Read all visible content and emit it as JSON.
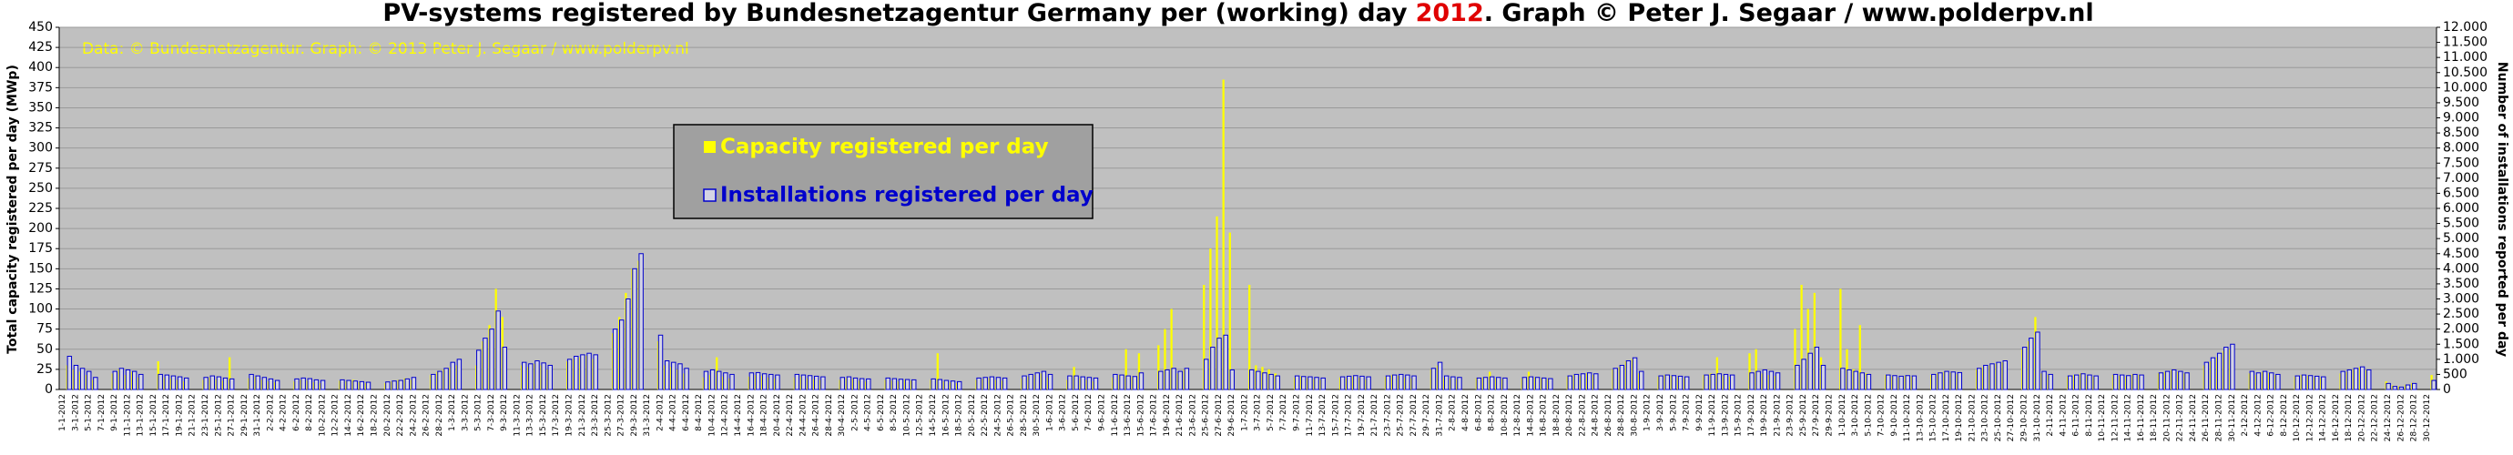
{
  "chart_data": {
    "type": "bar",
    "title": [
      "PV-systems registered by Bundesnetzagentur Germany per (working) day",
      "2012",
      ". Graph © Peter J. Segaar / www.polderpv.nl"
    ],
    "title_colors": [
      "#000000",
      "#e00000",
      "#000000"
    ],
    "annotation": "Data: © Bundesnetzagentur. Graph: © 2013 Peter J. Segaar / www.polderpv.nl",
    "ylabel": "Total capacity registered per day (MWp)",
    "y2label": "Number of installations reported per day",
    "categories": [
      "1-1-2012",
      null,
      "3-1-2012",
      null,
      "5-1-2012",
      null,
      "7-1-2012",
      null,
      "9-1-2012",
      null,
      "11-1-2012",
      null,
      "13-1-2012",
      null,
      "15-1-2012",
      null,
      "17-1-2012",
      null,
      "19-1-2012",
      null,
      "21-1-2012",
      null,
      "23-1-2012",
      null,
      "25-1-2012",
      null,
      "27-1-2012",
      null,
      "29-1-2012",
      null,
      "31-1-2012",
      null,
      "2-2-2012",
      null,
      "4-2-2012",
      null,
      "6-2-2012",
      null,
      "8-2-2012",
      null,
      "10-2-2012",
      null,
      "12-2-2012",
      null,
      "14-2-2012",
      null,
      "16-2-2012",
      null,
      "18-2-2012",
      null,
      "20-2-2012",
      null,
      "22-2-2012",
      null,
      "24-2-2012",
      null,
      "26-2-2012",
      null,
      "28-2-2012",
      null,
      "1-3-2012",
      null,
      "3-3-2012",
      null,
      "5-3-2012",
      null,
      "7-3-2012",
      null,
      "9-3-2012",
      null,
      "11-3-2012",
      null,
      "13-3-2012",
      null,
      "15-3-2012",
      null,
      "17-3-2012",
      null,
      "19-3-2012",
      null,
      "21-3-2012",
      null,
      "23-3-2012",
      null,
      "25-3-2012",
      null,
      "27-3-2012",
      null,
      "29-3-2012",
      null,
      "31-3-2012",
      null,
      "2-4-2012",
      null,
      "4-4-2012",
      null,
      "6-4-2012",
      null,
      "8-4-2012",
      null,
      "10-4-2012",
      null,
      "12-4-2012",
      null,
      "14-4-2012",
      null,
      "16-4-2012",
      null,
      "18-4-2012",
      null,
      "20-4-2012",
      null,
      "22-4-2012",
      null,
      "24-4-2012",
      null,
      "26-4-2012",
      null,
      "28-4-2012",
      null,
      "30-4-2012",
      null,
      "2-5-2012",
      null,
      "4-5-2012",
      null,
      "6-5-2012",
      null,
      "8-5-2012",
      null,
      "10-5-2012",
      null,
      "12-5-2012",
      null,
      "14-5-2012",
      null,
      "16-5-2012",
      null,
      "18-5-2012",
      null,
      "20-5-2012",
      null,
      "22-5-2012",
      null,
      "24-5-2012",
      null,
      "26-5-2012",
      null,
      "28-5-2012",
      null,
      "30-5-2012",
      null,
      "1-6-2012",
      null,
      "3-6-2012",
      null,
      "5-6-2012",
      null,
      "7-6-2012",
      null,
      "9-6-2012",
      null,
      "11-6-2012",
      null,
      "13-6-2012",
      null,
      "15-6-2012",
      null,
      "17-6-2012",
      null,
      "19-6-2012",
      null,
      "21-6-2012",
      null,
      "23-6-2012",
      null,
      "25-6-2012",
      null,
      "27-6-2012",
      null,
      "29-6-2012",
      null,
      "1-7-2012",
      null,
      "3-7-2012",
      null,
      "5-7-2012",
      null,
      "7-7-2012",
      null,
      "9-7-2012",
      null,
      "11-7-2012",
      null,
      "13-7-2012",
      null,
      "15-7-2012",
      null,
      "17-7-2012",
      null,
      "19-7-2012",
      null,
      "21-7-2012",
      null,
      "23-7-2012",
      null,
      "25-7-2012",
      null,
      "27-7-2012",
      null,
      "29-7-2012",
      null,
      "31-7-2012",
      null,
      "2-8-2012",
      null,
      "4-8-2012",
      null,
      "6-8-2012",
      null,
      "8-8-2012",
      null,
      "10-8-2012",
      null,
      "12-8-2012",
      null,
      "14-8-2012",
      null,
      "16-8-2012",
      null,
      "18-8-2012",
      null,
      "20-8-2012",
      null,
      "22-8-2012",
      null,
      "24-8-2012",
      null,
      "26-8-2012",
      null,
      "28-8-2012",
      null,
      "30-8-2012",
      null,
      "1-9-2012",
      null,
      "3-9-2012",
      null,
      "5-9-2012",
      null,
      "7-9-2012",
      null,
      "9-9-2012",
      null,
      "11-9-2012",
      null,
      "13-9-2012",
      null,
      "15-9-2012",
      null,
      "17-9-2012",
      null,
      "19-9-2012",
      null,
      "21-9-2012",
      null,
      "23-9-2012",
      null,
      "25-9-2012",
      null,
      "27-9-2012",
      null,
      "29-9-2012",
      null,
      "1-10-2012",
      null,
      "3-10-2012",
      null,
      "5-10-2012",
      null,
      "7-10-2012",
      null,
      "9-10-2012",
      null,
      "11-10-2012",
      null,
      "13-10-2012",
      null,
      "15-10-2012",
      null,
      "17-10-2012",
      null,
      "19-10-2012",
      null,
      "21-10-2012",
      null,
      "23-10-2012",
      null,
      "25-10-2012",
      null,
      "27-10-2012",
      null,
      "29-10-2012",
      null,
      "31-10-2012",
      null,
      "2-11-2012",
      null,
      "4-11-2012",
      null,
      "6-11-2012",
      null,
      "8-11-2012",
      null,
      "10-11-2012",
      null,
      "12-11-2012",
      null,
      "14-11-2012",
      null,
      "16-11-2012",
      null,
      "18-11-2012",
      null,
      "20-11-2012",
      null,
      "22-11-2012",
      null,
      "24-11-2012",
      null,
      "26-11-2012",
      null,
      "28-11-2012",
      null,
      "30-11-2012",
      null,
      "2-12-2012",
      null,
      "4-12-2012",
      null,
      "6-12-2012",
      null,
      "8-12-2012",
      null,
      "10-12-2012",
      null,
      "12-12-2012",
      null,
      "14-12-2012",
      null,
      "16-12-2012",
      null,
      "18-12-2012",
      null,
      "20-12-2012",
      null,
      "22-12-2012",
      null,
      "24-12-2012",
      null,
      "26-12-2012",
      null,
      "28-12-2012",
      null,
      "30-12-2012",
      null
    ],
    "series": [
      {
        "name": "Capacity registered per day",
        "color": "#ffff00",
        "values": [
          0,
          30,
          25,
          22,
          18,
          12,
          0,
          0,
          20,
          25,
          18,
          22,
          15,
          0,
          0,
          35,
          15,
          14,
          12,
          10,
          0,
          0,
          12,
          15,
          13,
          11,
          40,
          0,
          0,
          14,
          16,
          12,
          10,
          9,
          0,
          0,
          10,
          12,
          11,
          9,
          8,
          0,
          0,
          11,
          10,
          12,
          9,
          8,
          0,
          0,
          8,
          10,
          12,
          14,
          12,
          0,
          0,
          18,
          22,
          25,
          28,
          30,
          0,
          0,
          30,
          60,
          80,
          125,
          90,
          0,
          0,
          30,
          28,
          32,
          30,
          25,
          0,
          0,
          35,
          38,
          40,
          42,
          38,
          0,
          0,
          70,
          90,
          120,
          150,
          160,
          0,
          0,
          60,
          30,
          28,
          25,
          20,
          0,
          0,
          15,
          18,
          40,
          16,
          14,
          0,
          0,
          16,
          18,
          17,
          15,
          14,
          0,
          0,
          15,
          16,
          14,
          13,
          12,
          0,
          0,
          12,
          14,
          13,
          11,
          10,
          0,
          0,
          12,
          11,
          10,
          12,
          11,
          0,
          0,
          12,
          45,
          10,
          9,
          8,
          0,
          0,
          12,
          13,
          14,
          12,
          11,
          0,
          0,
          14,
          16,
          18,
          20,
          15,
          0,
          0,
          12,
          28,
          14,
          12,
          10,
          0,
          0,
          15,
          18,
          50,
          16,
          45,
          0,
          0,
          55,
          75,
          100,
          20,
          25,
          0,
          0,
          130,
          175,
          215,
          385,
          195,
          0,
          0,
          130,
          30,
          28,
          25,
          20,
          0,
          0,
          15,
          16,
          14,
          13,
          12,
          0,
          0,
          15,
          14,
          16,
          15,
          13,
          0,
          0,
          16,
          18,
          17,
          15,
          14,
          0,
          0,
          25,
          30,
          15,
          14,
          13,
          0,
          0,
          14,
          15,
          22,
          14,
          13,
          0,
          0,
          14,
          22,
          15,
          14,
          13,
          0,
          0,
          16,
          18,
          17,
          20,
          18,
          0,
          0,
          25,
          28,
          35,
          38,
          20,
          0,
          0,
          16,
          18,
          17,
          15,
          14,
          0,
          0,
          18,
          20,
          40,
          17,
          16,
          0,
          0,
          45,
          50,
          20,
          18,
          17,
          0,
          0,
          75,
          130,
          100,
          120,
          40,
          0,
          0,
          125,
          50,
          25,
          80,
          20,
          0,
          0,
          18,
          16,
          15,
          17,
          16,
          0,
          0,
          18,
          20,
          22,
          21,
          19,
          0,
          0,
          25,
          28,
          30,
          32,
          34,
          0,
          0,
          50,
          60,
          90,
          20,
          18,
          0,
          0,
          16,
          18,
          20,
          17,
          16,
          0,
          0,
          18,
          17,
          16,
          19,
          18,
          0,
          0,
          20,
          22,
          24,
          22,
          20,
          0,
          0,
          30,
          35,
          40,
          48,
          50,
          0,
          0,
          20,
          18,
          22,
          20,
          18,
          0,
          0,
          16,
          18,
          17,
          15,
          14,
          0,
          0,
          20,
          22,
          25,
          28,
          24,
          0,
          0,
          10,
          5,
          4,
          6,
          8,
          0,
          0,
          18
        ]
      },
      {
        "name": "Installations registered per day",
        "color": "#0000cc",
        "fill": "#d4d4e4",
        "axis": "y2",
        "values": [
          0,
          1100,
          800,
          700,
          600,
          400,
          0,
          0,
          600,
          700,
          650,
          600,
          500,
          0,
          0,
          500,
          480,
          450,
          420,
          380,
          0,
          0,
          400,
          450,
          420,
          380,
          350,
          0,
          0,
          500,
          450,
          400,
          350,
          300,
          0,
          0,
          350,
          380,
          360,
          320,
          300,
          0,
          0,
          320,
          300,
          280,
          260,
          240,
          0,
          0,
          250,
          280,
          300,
          350,
          400,
          0,
          0,
          500,
          600,
          700,
          900,
          1000,
          0,
          0,
          1300,
          1700,
          2000,
          2600,
          1400,
          0,
          0,
          900,
          850,
          950,
          880,
          800,
          0,
          0,
          1000,
          1100,
          1150,
          1200,
          1150,
          0,
          0,
          2000,
          2300,
          3000,
          4000,
          4500,
          0,
          0,
          1800,
          950,
          900,
          850,
          700,
          0,
          0,
          600,
          650,
          600,
          550,
          500,
          0,
          0,
          550,
          560,
          520,
          500,
          480,
          0,
          0,
          500,
          480,
          460,
          440,
          420,
          0,
          0,
          400,
          420,
          380,
          360,
          350,
          0,
          0,
          380,
          360,
          340,
          330,
          320,
          0,
          0,
          350,
          330,
          300,
          280,
          260,
          0,
          0,
          380,
          400,
          420,
          400,
          380,
          0,
          0,
          450,
          500,
          550,
          600,
          500,
          0,
          0,
          450,
          450,
          420,
          400,
          380,
          0,
          0,
          500,
          480,
          450,
          430,
          550,
          0,
          0,
          600,
          650,
          700,
          600,
          700,
          0,
          0,
          1000,
          1400,
          1700,
          1800,
          650,
          0,
          0,
          650,
          600,
          550,
          500,
          450,
          0,
          0,
          450,
          430,
          420,
          400,
          380,
          0,
          0,
          420,
          440,
          460,
          440,
          420,
          0,
          0,
          450,
          480,
          500,
          480,
          450,
          0,
          0,
          700,
          900,
          450,
          420,
          400,
          0,
          0,
          380,
          400,
          420,
          400,
          380,
          0,
          0,
          400,
          420,
          400,
          380,
          360,
          0,
          0,
          450,
          500,
          520,
          550,
          520,
          0,
          0,
          700,
          800,
          950,
          1050,
          600,
          0,
          0,
          450,
          480,
          460,
          440,
          420,
          0,
          0,
          480,
          500,
          520,
          500,
          480,
          0,
          0,
          550,
          600,
          650,
          600,
          550,
          0,
          0,
          800,
          1000,
          1200,
          1400,
          800,
          0,
          0,
          700,
          650,
          600,
          550,
          500,
          0,
          0,
          480,
          460,
          440,
          460,
          450,
          0,
          0,
          500,
          550,
          600,
          580,
          560,
          0,
          0,
          700,
          800,
          850,
          900,
          950,
          0,
          0,
          1400,
          1700,
          1900,
          600,
          500,
          0,
          0,
          450,
          480,
          520,
          480,
          450,
          0,
          0,
          500,
          480,
          460,
          500,
          480,
          0,
          0,
          550,
          600,
          650,
          600,
          550,
          0,
          0,
          900,
          1050,
          1200,
          1400,
          1500,
          0,
          0,
          600,
          550,
          600,
          550,
          500,
          0,
          0,
          450,
          480,
          460,
          440,
          420,
          0,
          0,
          600,
          650,
          700,
          750,
          650,
          0,
          0,
          200,
          100,
          80,
          150,
          200,
          0,
          0,
          300
        ]
      }
    ],
    "ylim": [
      0,
      450
    ],
    "yticks": [
      0,
      25,
      50,
      75,
      100,
      125,
      150,
      175,
      200,
      225,
      250,
      275,
      300,
      325,
      350,
      375,
      400,
      425,
      450
    ],
    "y2lim": [
      0,
      12000
    ],
    "y2ticks": [
      0,
      500,
      {
        "value": 1000,
        "label": "1.000"
      },
      {
        "value": 1500,
        "label": "1.500"
      },
      {
        "value": 2000,
        "label": "2.000"
      },
      {
        "value": 2500,
        "label": "2.500"
      },
      {
        "value": 3000,
        "label": "3.000"
      },
      {
        "value": 3500,
        "label": "3.500"
      },
      {
        "value": 4000,
        "label": "4.000"
      },
      {
        "value": 4500,
        "label": "4.500"
      },
      {
        "value": 5000,
        "label": "5.000"
      },
      {
        "value": 5500,
        "label": "5.500"
      },
      {
        "value": 6000,
        "label": "6.000"
      },
      {
        "value": 6500,
        "label": "6.500"
      },
      {
        "value": 7000,
        "label": "7.000"
      },
      {
        "value": 7500,
        "label": "7.500"
      },
      {
        "value": 8000,
        "label": "8.000"
      },
      {
        "value": 8500,
        "label": "8.500"
      },
      {
        "value": 9000,
        "label": "9.000"
      },
      {
        "value": 9500,
        "label": "9.500"
      },
      {
        "value": 10000,
        "label": "10.000"
      },
      {
        "value": 10500,
        "label": "10.500"
      },
      {
        "value": 11000,
        "label": "11.000"
      },
      {
        "value": 11500,
        "label": "11.500"
      },
      {
        "value": 12000,
        "label": "12.000"
      }
    ],
    "grid": true,
    "plot_background": "#c0c0c0",
    "annotation_color": "#ffff00"
  }
}
